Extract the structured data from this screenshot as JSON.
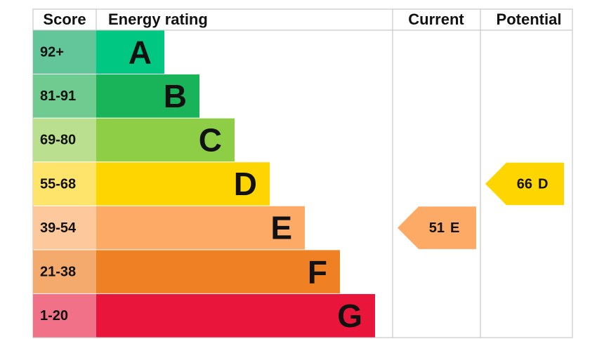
{
  "header": {
    "score": "Score",
    "rating": "Energy rating",
    "current": "Current",
    "potential": "Potential"
  },
  "bands": [
    {
      "range": "92+",
      "letter": "A",
      "color": "#00c781",
      "score_color": "#63c69b"
    },
    {
      "range": "81-91",
      "letter": "B",
      "color": "#19b459",
      "score_color": "#6fcb8f"
    },
    {
      "range": "69-80",
      "letter": "C",
      "color": "#8dce46",
      "score_color": "#badf8f"
    },
    {
      "range": "55-68",
      "letter": "D",
      "color": "#ffd500",
      "score_color": "#ffe46b"
    },
    {
      "range": "39-54",
      "letter": "E",
      "color": "#fcaa65",
      "score_color": "#fdc89b"
    },
    {
      "range": "21-38",
      "letter": "F",
      "color": "#ef8023",
      "score_color": "#f4aa6c"
    },
    {
      "range": "1-20",
      "letter": "G",
      "color": "#e9153b",
      "score_color": "#f07188"
    }
  ],
  "current": {
    "score": 51,
    "band": "E"
  },
  "potential": {
    "score": 66,
    "band": "D"
  }
}
